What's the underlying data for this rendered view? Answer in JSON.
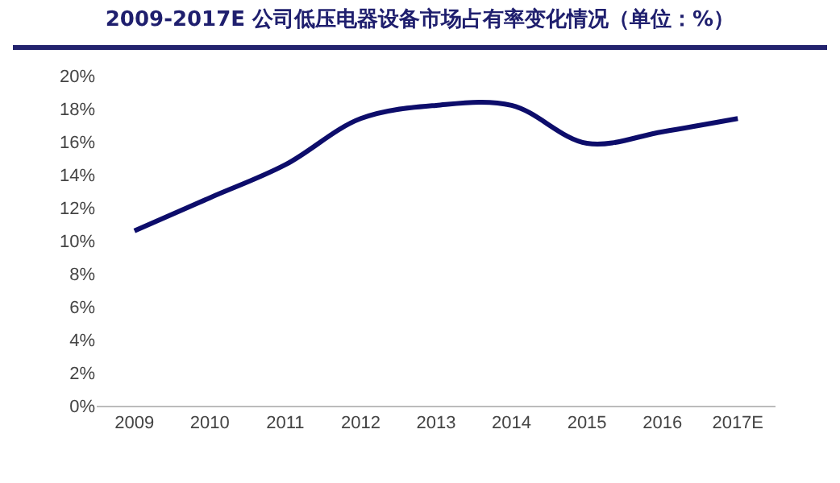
{
  "chart_data": {
    "type": "line",
    "title": "2009-2017E 公司低压电器设备市场占有率变化情况（单位：%）",
    "categories": [
      "2009",
      "2010",
      "2011",
      "2012",
      "2013",
      "2014",
      "2015",
      "2016",
      "2017E"
    ],
    "series": [
      {
        "color": "#0d0d6b",
        "values": [
          10.6,
          12.6,
          14.6,
          17.4,
          18.2,
          18.2,
          15.9,
          16.6,
          17.4
        ]
      }
    ],
    "ylim": [
      0,
      20
    ],
    "yticks": [
      {
        "value": 0,
        "label": "0%"
      },
      {
        "value": 2,
        "label": "2%"
      },
      {
        "value": 4,
        "label": "4%"
      },
      {
        "value": 6,
        "label": "6%"
      },
      {
        "value": 8,
        "label": "8%"
      },
      {
        "value": 10,
        "label": "10%"
      },
      {
        "value": 12,
        "label": "12%"
      },
      {
        "value": 14,
        "label": "14%"
      },
      {
        "value": 16,
        "label": "16%"
      },
      {
        "value": 18,
        "label": "18%"
      },
      {
        "value": 20,
        "label": "20%"
      }
    ],
    "grid": false,
    "marker": "none",
    "line_style": "solid"
  }
}
